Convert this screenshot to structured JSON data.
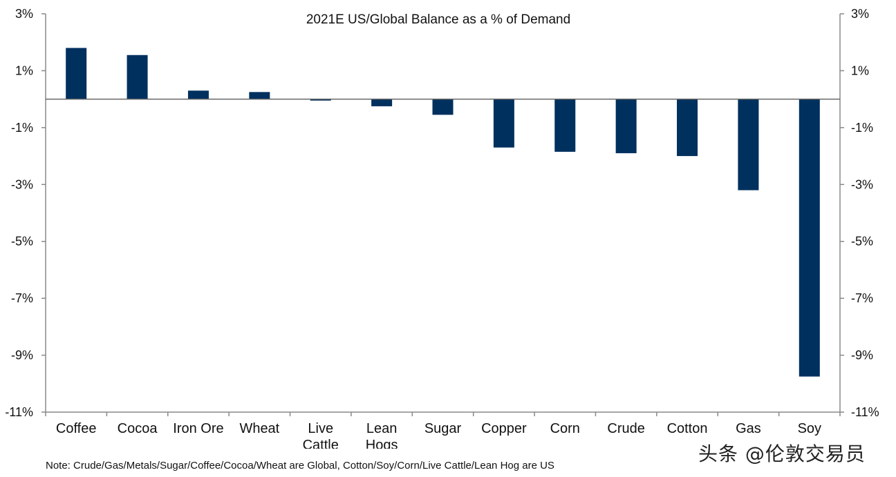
{
  "chart_data": {
    "type": "bar",
    "title": "2021E US/Global Balance as a % of Demand",
    "categories": [
      "Coffee",
      "Cocoa",
      "Iron Ore",
      "Wheat",
      "Live\nCattle",
      "Lean\nHogs",
      "Sugar",
      "Copper",
      "Corn",
      "Crude",
      "Cotton",
      "Gas",
      "Soy"
    ],
    "values": [
      1.8,
      1.55,
      0.3,
      0.25,
      -0.05,
      -0.25,
      -0.55,
      -1.7,
      -1.85,
      -1.9,
      -2.0,
      -3.2,
      -9.75
    ],
    "ylim": [
      -11,
      3
    ],
    "yticks": [
      3,
      1,
      -1,
      -3,
      -5,
      -7,
      -9,
      -11
    ],
    "ytick_labels": [
      "3%",
      "1%",
      "-1%",
      "-3%",
      "-5%",
      "-7%",
      "-9%",
      "-11%"
    ],
    "secondary_y_axis": true,
    "bar_color": "#00305e",
    "grid": false,
    "note": "Note: Crude/Gas/Metals/Sugar/Coffee/Cocoa/Wheat are Global, Cotton/Soy/Corn/Live Cattle/Lean Hog are US"
  },
  "watermark": "头条 @伦敦交易员"
}
